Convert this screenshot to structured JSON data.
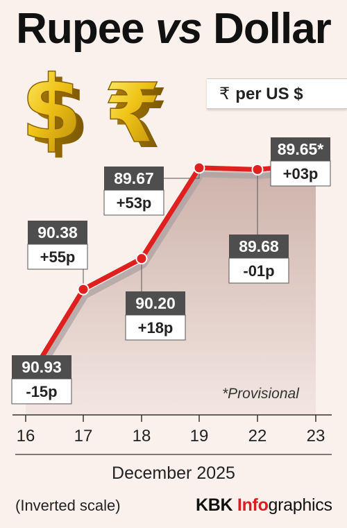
{
  "header": {
    "title_left": "Rupee",
    "title_vs": "vs",
    "title_right": "Dollar",
    "unit_symbol": "₹",
    "unit_text": "per US $"
  },
  "icons": [
    "dollar-sign-icon",
    "rupee-sign-icon"
  ],
  "colors": {
    "line": "#e0201e",
    "label_dark": "#4e4e4e",
    "accent": "#d81e1e",
    "background": "#fbf1ec"
  },
  "chart_data": {
    "type": "line",
    "inverted_y": true,
    "categories": [
      "16",
      "17",
      "18",
      "19",
      "22",
      "23"
    ],
    "values": [
      90.93,
      90.38,
      90.2,
      89.67,
      89.68,
      89.65
    ],
    "value_labels": [
      "90.93",
      "90.38",
      "90.20",
      "89.67",
      "89.68",
      "89.65*"
    ],
    "change_labels": [
      "-15p",
      "+55p",
      "+18p",
      "+53p",
      "-01p",
      "+03p"
    ],
    "label_positions": [
      "below",
      "above",
      "below",
      "above",
      "below",
      "above"
    ],
    "xlabel": "December 2025",
    "ylim": [
      89.5,
      91.0
    ],
    "grid": false,
    "annotation": "*Provisional"
  },
  "footer": {
    "note": "(Inverted scale)",
    "credit_brand": "KBK ",
    "credit_info": "Info",
    "credit_rest": "graphics"
  }
}
